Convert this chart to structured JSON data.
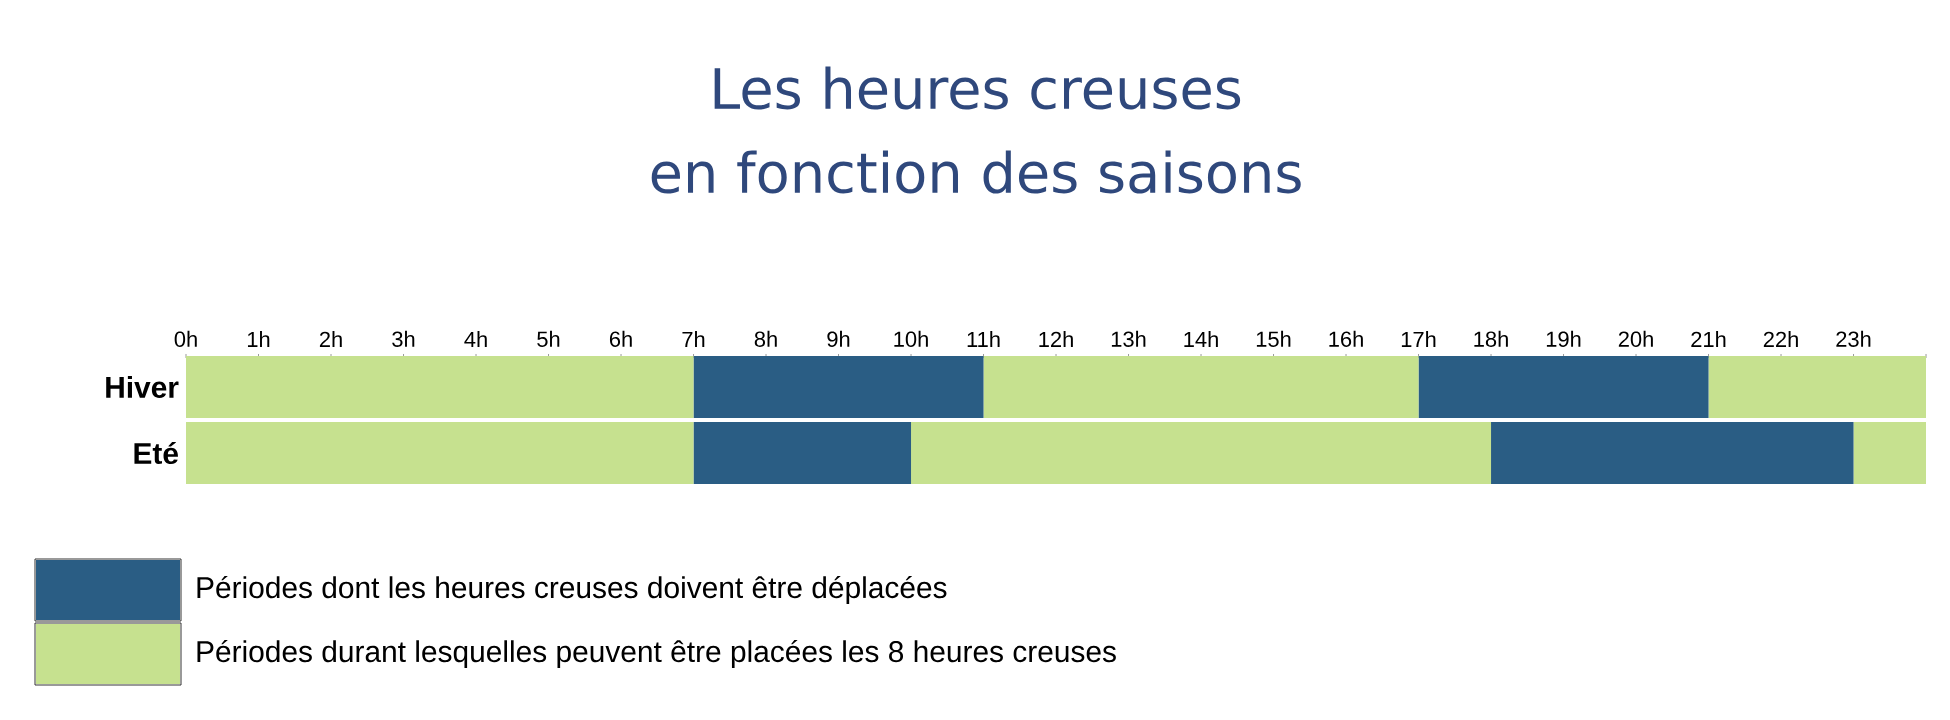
{
  "chart_data": {
    "type": "bar",
    "orientation": "horizontal",
    "stacked": true,
    "title": "Les heures creuses",
    "subtitle": "en fonction des saisons",
    "categories": [
      "Hiver",
      "Eté"
    ],
    "series": [
      {
        "name": "Périodes durant lesquelles peuvent être placées les 8 heures creuses",
        "color": "#c6e18f",
        "values": [
          7,
          7
        ]
      },
      {
        "name": "Périodes dont les heures creuses doivent être déplacées",
        "color": "#2a5d84",
        "values": [
          4,
          3
        ]
      },
      {
        "color": "#c6e18f",
        "values": [
          6,
          8
        ]
      },
      {
        "color": "#2a5d84",
        "values": [
          4,
          5
        ]
      },
      {
        "color": "#c6e18f",
        "values": [
          3,
          1
        ]
      }
    ],
    "xlim": [
      0,
      24
    ],
    "xticks": [
      {
        "value": 0,
        "label": "0h"
      },
      {
        "value": 1,
        "label": "1h"
      },
      {
        "value": 2,
        "label": "2h"
      },
      {
        "value": 3,
        "label": "3h"
      },
      {
        "value": 4,
        "label": "4h"
      },
      {
        "value": 5,
        "label": "5h"
      },
      {
        "value": 6,
        "label": "6h"
      },
      {
        "value": 7,
        "label": "7h"
      },
      {
        "value": 8,
        "label": "8h"
      },
      {
        "value": 9,
        "label": "9h"
      },
      {
        "value": 10,
        "label": "10h"
      },
      {
        "value": 11,
        "label": "11h"
      },
      {
        "value": 12,
        "label": "12h"
      },
      {
        "value": 13,
        "label": "13h"
      },
      {
        "value": 14,
        "label": "14h"
      },
      {
        "value": 15,
        "label": "15h"
      },
      {
        "value": 16,
        "label": "16h"
      },
      {
        "value": 17,
        "label": "17h"
      },
      {
        "value": 18,
        "label": "18h"
      },
      {
        "value": 19,
        "label": "19h"
      },
      {
        "value": 20,
        "label": "20h"
      },
      {
        "value": 21,
        "label": "21h"
      },
      {
        "value": 22,
        "label": "22h"
      },
      {
        "value": 23,
        "label": "23h"
      },
      {
        "value": 24,
        "label": null
      }
    ],
    "legend": "bottom left",
    "grid": false
  }
}
